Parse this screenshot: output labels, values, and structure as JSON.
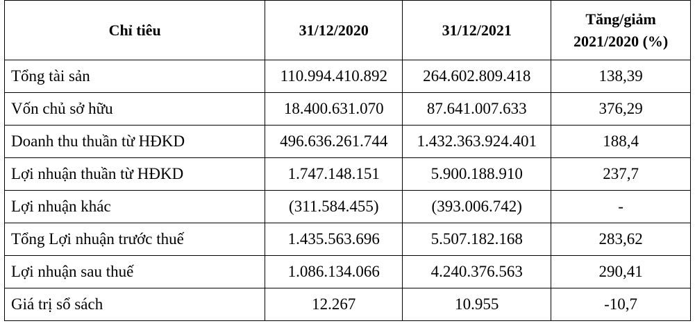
{
  "table": {
    "headers": {
      "col1": "Chỉ tiêu",
      "col2": "31/12/2020",
      "col3": "31/12/2021",
      "col4_line1": "Tăng/giảm",
      "col4_line2": "2021/2020 (%)"
    },
    "rows": [
      {
        "label": "Tổng tài sản",
        "v2020": "110.994.410.892",
        "v2021": "264.602.809.418",
        "change": "138,39"
      },
      {
        "label": "Vốn chủ sở hữu",
        "v2020": "18.400.631.070",
        "v2021": "87.641.007.633",
        "change": "376,29"
      },
      {
        "label": "Doanh thu thuần từ HĐKD",
        "v2020": "496.636.261.744",
        "v2021": "1.432.363.924.401",
        "change": "188,4"
      },
      {
        "label": "Lợi nhuận thuần từ HĐKD",
        "v2020": "1.747.148.151",
        "v2021": "5.900.188.910",
        "change": "237,7"
      },
      {
        "label": "Lợi nhuận khác",
        "v2020": "(311.584.455)",
        "v2021": "(393.006.742)",
        "change": "-"
      },
      {
        "label": "Tổng Lợi nhuận trước thuế",
        "v2020": "1.435.563.696",
        "v2021": "5.507.182.168",
        "change": "283,62"
      },
      {
        "label": "Lợi nhuận sau thuế",
        "v2020": "1.086.134.066",
        "v2021": "4.240.376.563",
        "change": "290,41"
      },
      {
        "label": "Giá trị sổ sách",
        "v2020": "12.267",
        "v2021": "10.955",
        "change": "-10,7"
      }
    ]
  }
}
